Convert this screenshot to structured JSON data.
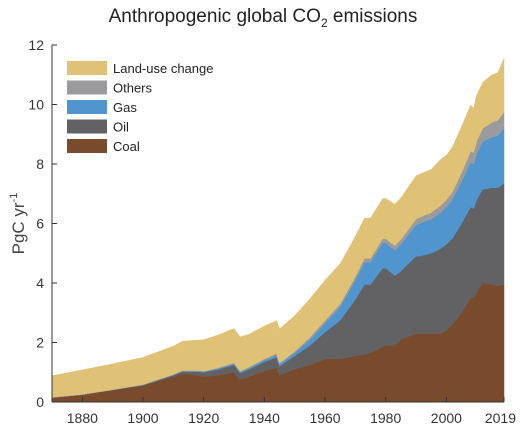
{
  "chart_data": {
    "type": "area",
    "title_prefix": "Anthropogenic global CO",
    "title_sub": "2",
    "title_suffix": " emissions",
    "ylabel": "PgC yr",
    "ylabel_sup": "-1",
    "xlim": [
      1870,
      2019
    ],
    "ylim": [
      0,
      12
    ],
    "x_ticks": [
      1880,
      1900,
      1920,
      1940,
      1960,
      1980,
      2000,
      2019
    ],
    "y_ticks": [
      0,
      2,
      4,
      6,
      8,
      10,
      12
    ],
    "grid": false,
    "legend_placement": "top-left",
    "x": [
      1870,
      1880,
      1890,
      1900,
      1910,
      1913,
      1918,
      1920,
      1925,
      1930,
      1932,
      1935,
      1940,
      1944,
      1945,
      1950,
      1955,
      1960,
      1965,
      1970,
      1973,
      1975,
      1979,
      1980,
      1983,
      1985,
      1990,
      1991,
      1995,
      1998,
      2000,
      2002,
      2005,
      2008,
      2009,
      2010,
      2012,
      2015,
      2017,
      2019
    ],
    "series": [
      {
        "name": "Coal",
        "color": "#7a4a2c",
        "values": [
          0.15,
          0.25,
          0.4,
          0.55,
          0.85,
          0.95,
          0.9,
          0.85,
          0.9,
          1.0,
          0.75,
          0.85,
          1.05,
          1.15,
          0.9,
          1.1,
          1.25,
          1.45,
          1.45,
          1.55,
          1.6,
          1.65,
          1.85,
          1.9,
          1.9,
          2.1,
          2.3,
          2.3,
          2.3,
          2.3,
          2.4,
          2.6,
          3.0,
          3.5,
          3.5,
          3.7,
          4.0,
          3.95,
          3.9,
          3.95
        ]
      },
      {
        "name": "Oil",
        "color": "#626264",
        "values": [
          0.0,
          0.0,
          0.01,
          0.02,
          0.05,
          0.08,
          0.12,
          0.15,
          0.2,
          0.25,
          0.22,
          0.25,
          0.3,
          0.35,
          0.3,
          0.45,
          0.65,
          0.9,
          1.3,
          1.9,
          2.35,
          2.3,
          2.65,
          2.6,
          2.35,
          2.3,
          2.6,
          2.6,
          2.7,
          2.85,
          2.9,
          2.9,
          3.0,
          3.05,
          3.0,
          3.1,
          3.15,
          3.25,
          3.3,
          3.4
        ]
      },
      {
        "name": "Gas",
        "color": "#5195cf",
        "values": [
          0.0,
          0.0,
          0.0,
          0.0,
          0.01,
          0.01,
          0.02,
          0.02,
          0.03,
          0.04,
          0.04,
          0.05,
          0.06,
          0.08,
          0.07,
          0.1,
          0.2,
          0.3,
          0.45,
          0.65,
          0.75,
          0.75,
          0.85,
          0.85,
          0.85,
          0.9,
          1.05,
          1.1,
          1.15,
          1.2,
          1.25,
          1.3,
          1.4,
          1.5,
          1.5,
          1.55,
          1.6,
          1.7,
          1.75,
          1.85
        ]
      },
      {
        "name": "Others",
        "color": "#9b9b9d",
        "values": [
          0.01,
          0.01,
          0.01,
          0.02,
          0.02,
          0.02,
          0.02,
          0.02,
          0.03,
          0.03,
          0.03,
          0.03,
          0.04,
          0.05,
          0.04,
          0.05,
          0.07,
          0.09,
          0.1,
          0.12,
          0.13,
          0.13,
          0.14,
          0.14,
          0.15,
          0.16,
          0.2,
          0.2,
          0.22,
          0.24,
          0.25,
          0.26,
          0.3,
          0.38,
          0.38,
          0.42,
          0.45,
          0.5,
          0.52,
          0.55
        ]
      },
      {
        "name": "Land-use change",
        "color": "#dfc276",
        "values": [
          0.72,
          0.82,
          0.86,
          0.91,
          0.95,
          0.98,
          1.02,
          1.05,
          1.1,
          1.15,
          1.15,
          1.1,
          1.1,
          1.1,
          1.15,
          1.2,
          1.3,
          1.35,
          1.35,
          1.35,
          1.35,
          1.35,
          1.35,
          1.35,
          1.4,
          1.4,
          1.45,
          1.45,
          1.45,
          1.55,
          1.5,
          1.5,
          1.55,
          1.55,
          1.5,
          1.55,
          1.55,
          1.6,
          1.6,
          1.8
        ]
      }
    ],
    "legend_order": [
      "Land-use change",
      "Others",
      "Gas",
      "Oil",
      "Coal"
    ]
  }
}
